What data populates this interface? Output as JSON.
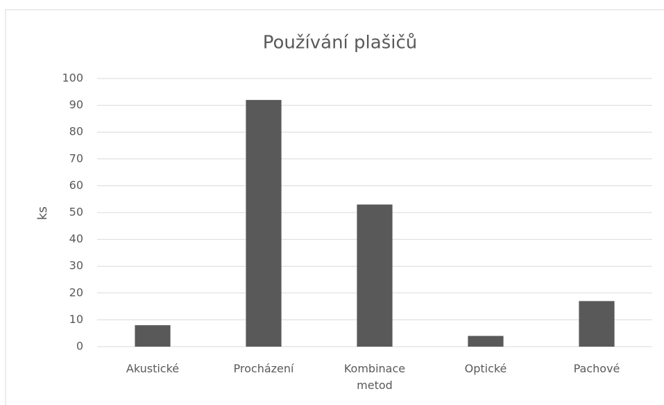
{
  "chart_data": {
    "type": "bar",
    "title": "Používání plašičů",
    "y_label": "ks",
    "categories": [
      "Akustické",
      "Procházení",
      "Kombinace metod",
      "Optické",
      "Pachové"
    ],
    "values": [
      8,
      92,
      53,
      4,
      17
    ],
    "color": "#595959",
    "ylim": [
      0,
      100
    ],
    "yticks": [
      0,
      10,
      20,
      30,
      40,
      50,
      60,
      70,
      80,
      90,
      100
    ],
    "grid": true
  }
}
